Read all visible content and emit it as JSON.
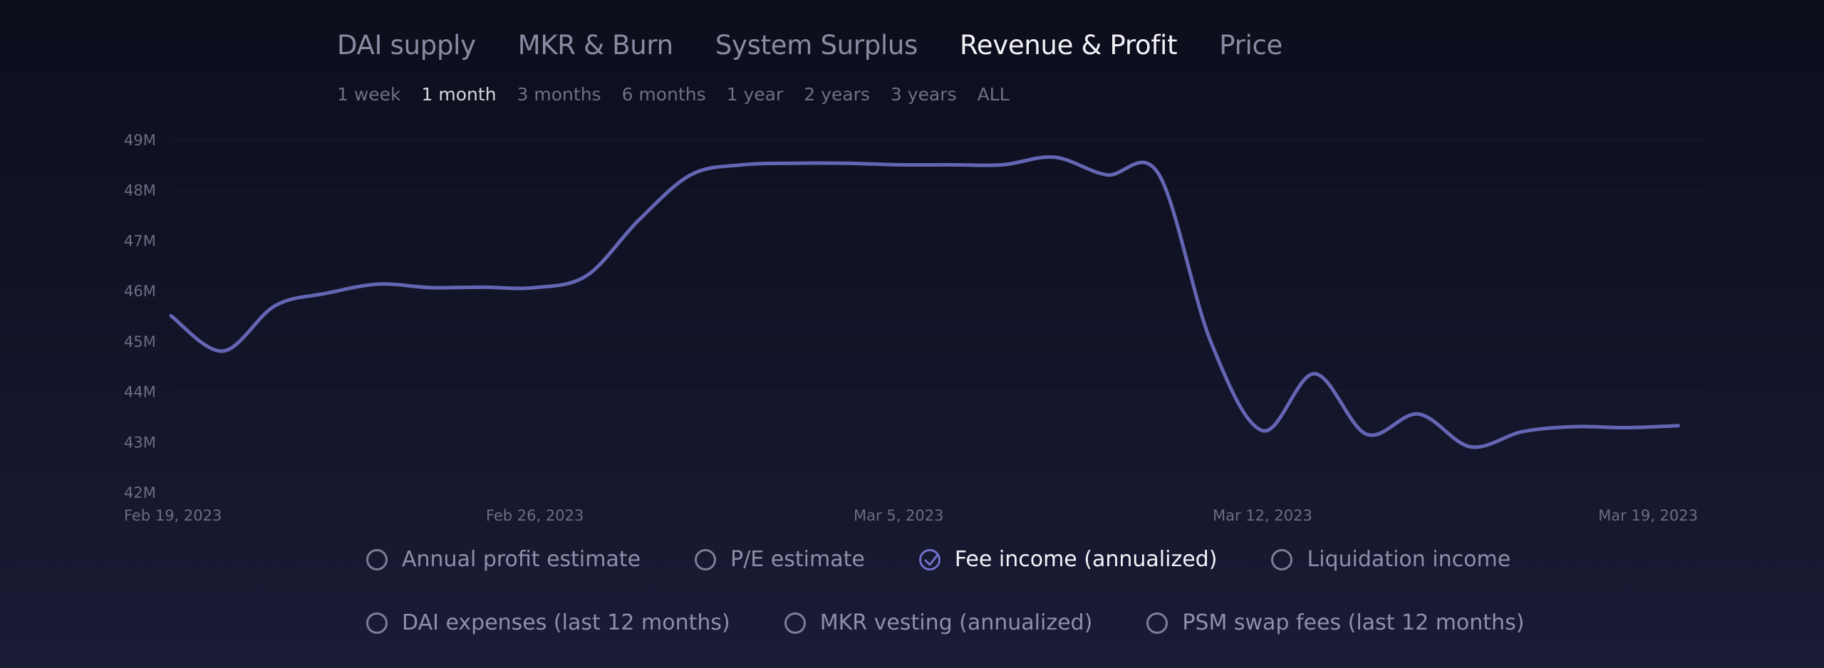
{
  "tabs": [
    "DAI supply",
    "MKR & Burn",
    "System Surplus",
    "Revenue & Profit",
    "Price"
  ],
  "active_tab": "Revenue & Profit",
  "ranges": [
    "1 week",
    "1 month",
    "3 months",
    "6 months",
    "1 year",
    "2 years",
    "3 years",
    "ALL"
  ],
  "active_range": "1 month",
  "legend": {
    "row1": [
      {
        "label": "Annual profit estimate",
        "checked": false
      },
      {
        "label": "P/E estimate",
        "checked": false
      },
      {
        "label": "Fee income (annualized)",
        "checked": true
      },
      {
        "label": "Liquidation income",
        "checked": false
      }
    ],
    "row2": [
      {
        "label": "DAI expenses (last 12 months)",
        "checked": false
      },
      {
        "label": "MKR vesting (annualized)",
        "checked": false
      },
      {
        "label": "PSM swap fees (last 12 months)",
        "checked": false
      }
    ]
  },
  "colors": {
    "line": "#6466b4",
    "accent": "#7070c8",
    "tick_text": "#6c6d84",
    "grid": "#1a1b2e"
  },
  "chart_data": {
    "type": "line",
    "title": "",
    "xlabel": "",
    "ylabel": "",
    "ylim": [
      42,
      49
    ],
    "y_ticks": [
      "42M",
      "43M",
      "44M",
      "45M",
      "46M",
      "47M",
      "48M",
      "49M"
    ],
    "x_ticks": [
      "Feb 19, 2023",
      "Feb 26, 2023",
      "Mar 5, 2023",
      "Mar 12, 2023",
      "Mar 19, 2023"
    ],
    "x_tick_dates": [
      "2023-02-19",
      "2023-02-26",
      "2023-03-05",
      "2023-03-12",
      "2023-03-19"
    ],
    "series": [
      {
        "values": [
          {
            "x": "2023-02-19",
            "y": 45.5
          },
          {
            "x": "2023-02-20",
            "y": 44.8
          },
          {
            "x": "2023-02-21",
            "y": 45.7
          },
          {
            "x": "2023-02-22",
            "y": 45.95
          },
          {
            "x": "2023-02-23",
            "y": 46.13
          },
          {
            "x": "2023-02-24",
            "y": 46.06
          },
          {
            "x": "2023-02-25",
            "y": 46.07
          },
          {
            "x": "2023-02-26",
            "y": 46.06
          },
          {
            "x": "2023-02-27",
            "y": 46.3
          },
          {
            "x": "2023-02-28",
            "y": 47.4
          },
          {
            "x": "2023-03-01",
            "y": 48.3
          },
          {
            "x": "2023-03-02",
            "y": 48.5
          },
          {
            "x": "2023-03-03",
            "y": 48.53
          },
          {
            "x": "2023-03-04",
            "y": 48.53
          },
          {
            "x": "2023-03-05",
            "y": 48.5
          },
          {
            "x": "2023-03-06",
            "y": 48.5
          },
          {
            "x": "2023-03-07",
            "y": 48.5
          },
          {
            "x": "2023-03-08",
            "y": 48.65
          },
          {
            "x": "2023-03-09",
            "y": 48.3
          },
          {
            "x": "2023-03-10",
            "y": 48.32
          },
          {
            "x": "2023-03-11",
            "y": 45.0
          },
          {
            "x": "2023-03-12",
            "y": 43.22
          },
          {
            "x": "2023-03-13",
            "y": 44.35
          },
          {
            "x": "2023-03-14",
            "y": 43.15
          },
          {
            "x": "2023-03-15",
            "y": 43.55
          },
          {
            "x": "2023-03-16",
            "y": 42.9
          },
          {
            "x": "2023-03-17",
            "y": 43.2
          },
          {
            "x": "2023-03-18",
            "y": 43.3
          },
          {
            "x": "2023-03-19",
            "y": 43.28
          },
          {
            "x": "2023-03-20",
            "y": 43.32
          }
        ]
      }
    ],
    "grid": true,
    "legend_placement": "bottom"
  }
}
